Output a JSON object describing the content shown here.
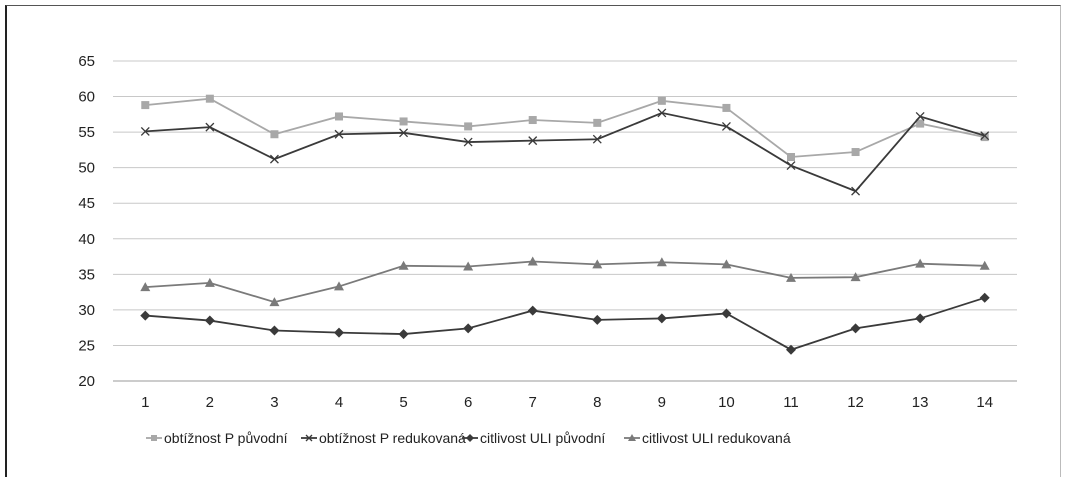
{
  "chart_data": {
    "type": "line",
    "title": "",
    "xlabel": "",
    "ylabel": "",
    "categories": [
      "1",
      "2",
      "3",
      "4",
      "5",
      "6",
      "7",
      "8",
      "9",
      "10",
      "11",
      "12",
      "13",
      "14"
    ],
    "ylim": [
      20,
      65
    ],
    "yticks": [
      20,
      25,
      30,
      35,
      40,
      45,
      50,
      55,
      60,
      65
    ],
    "grid": "horizontal",
    "legend_position": "bottom",
    "series": [
      {
        "name": "obtížnost P původní",
        "marker": "square",
        "color": "#a8a8a8",
        "values": [
          58.8,
          59.7,
          54.7,
          57.2,
          56.5,
          55.8,
          56.7,
          56.3,
          59.4,
          58.4,
          51.5,
          52.2,
          56.2,
          54.3
        ]
      },
      {
        "name": "obtížnost P redukovaná",
        "marker": "x",
        "color": "#3a3a3a",
        "values": [
          55.1,
          55.7,
          51.2,
          54.7,
          54.9,
          53.6,
          53.8,
          54.0,
          57.7,
          55.8,
          50.3,
          46.7,
          57.2,
          54.5
        ]
      },
      {
        "name": "citlivost ULI  původní",
        "marker": "diamond",
        "color": "#3a3a3a",
        "values": [
          29.2,
          28.5,
          27.1,
          26.8,
          26.6,
          27.4,
          29.9,
          28.6,
          28.8,
          29.5,
          24.4,
          27.4,
          28.8,
          31.7
        ]
      },
      {
        "name": "citlivost ULI  redukovaná",
        "marker": "triangle",
        "color": "#7a7a7a",
        "values": [
          33.2,
          33.8,
          31.1,
          33.3,
          36.2,
          36.1,
          36.8,
          36.4,
          36.7,
          36.4,
          34.5,
          34.6,
          36.5,
          36.2
        ]
      }
    ]
  }
}
